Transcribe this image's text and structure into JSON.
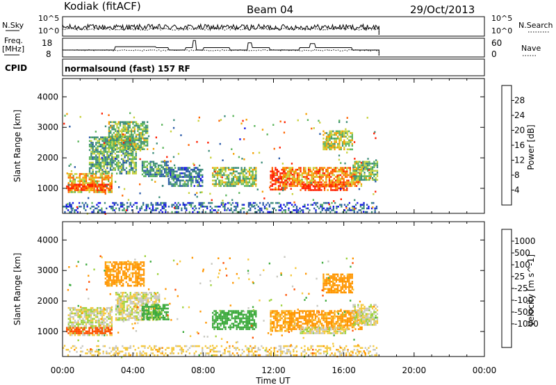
{
  "header": {
    "station": "Kodiak (fitACF)",
    "beam": "Beam 04",
    "date": "29/Oct/2013"
  },
  "status_panels": {
    "nsky_label": "N.Sky",
    "nsky_ticks": [
      "10^5",
      "10^0"
    ],
    "nsearch_label": "N.Search",
    "nsearch_ticks": [
      "10^5",
      "10^0"
    ],
    "freq_label": "Freq.",
    "freq_unit": "[MHz]",
    "freq_ticks": [
      "18",
      "8"
    ],
    "nave_label": "Nave",
    "nave_ticks": [
      "60",
      "0"
    ],
    "cpid_label": "CPID",
    "cpid_value": "normalsound (fast) 157 RF"
  },
  "colors": {
    "power_scale": [
      "#1414e6",
      "#2a5aa8",
      "#3c8c78",
      "#5ab45a",
      "#c8d23c",
      "#f5a000",
      "#ff6400",
      "#ff1e00"
    ],
    "velocity_scale": [
      "#e60000",
      "#ff5000",
      "#ff9600",
      "#f5c83c",
      "#c8c8c0",
      "#9ed23c",
      "#3caa3c",
      "#2d7850",
      "#1e46a0",
      "#1414b4"
    ]
  },
  "chart_data": [
    {
      "type": "heatmap",
      "title": "",
      "xlabel": "Time UT",
      "ylabel": "Slant Range [km]",
      "x_ticks": [
        "00:00",
        "04:00",
        "08:00",
        "12:00",
        "16:00",
        "20:00",
        "00:00"
      ],
      "x_range_hours": [
        0,
        24
      ],
      "y_ticks": [
        "1000",
        "2000",
        "3000",
        "4000"
      ],
      "ylim": [
        180,
        4600
      ],
      "colorbar_label": "Power [dB]",
      "colorbar_ticks": [
        "4",
        "8",
        "12",
        "16",
        "20",
        "24",
        "28"
      ],
      "colorbar_range": [
        0,
        30
      ],
      "data_end_hour": 18,
      "echo_regions": [
        {
          "t": [
            0.3,
            2.8
          ],
          "range": [
            850,
            1500
          ],
          "value": 20
        },
        {
          "t": [
            0.2,
            2.8
          ],
          "range": [
            950,
            1150
          ],
          "value": 28
        },
        {
          "t": [
            1.5,
            4.2
          ],
          "range": [
            1500,
            2700
          ],
          "value": 12
        },
        {
          "t": [
            2.6,
            4.8
          ],
          "range": [
            2300,
            3200
          ],
          "value": 14
        },
        {
          "t": [
            4.5,
            6.0
          ],
          "range": [
            1400,
            1900
          ],
          "value": 10
        },
        {
          "t": [
            6.0,
            8.0
          ],
          "range": [
            1100,
            1700
          ],
          "value": 8
        },
        {
          "t": [
            8.5,
            11.0
          ],
          "range": [
            1100,
            1700
          ],
          "value": 14
        },
        {
          "t": [
            11.8,
            12.8
          ],
          "range": [
            950,
            1700
          ],
          "value": 28
        },
        {
          "t": [
            12.5,
            17.0
          ],
          "range": [
            1050,
            1700
          ],
          "value": 22
        },
        {
          "t": [
            13.5,
            16.2
          ],
          "range": [
            950,
            1150
          ],
          "value": 28
        },
        {
          "t": [
            14.8,
            16.5
          ],
          "range": [
            2300,
            2900
          ],
          "value": 16
        },
        {
          "t": [
            16.5,
            17.9
          ],
          "range": [
            1300,
            1900
          ],
          "value": 14
        },
        {
          "t": [
            0.0,
            17.9
          ],
          "range": [
            200,
            550
          ],
          "value": 6
        }
      ]
    },
    {
      "type": "heatmap",
      "title": "",
      "xlabel": "Time UT",
      "ylabel": "Slant Range [km]",
      "x_ticks": [
        "00:00",
        "04:00",
        "08:00",
        "12:00",
        "16:00",
        "20:00",
        "00:00"
      ],
      "x_range_hours": [
        0,
        24
      ],
      "y_ticks": [
        "1000",
        "2000",
        "3000",
        "4000"
      ],
      "ylim": [
        180,
        4600
      ],
      "colorbar_label": "Velocity [m s^-1]",
      "colorbar_ticks": [
        "1000",
        "500",
        "100",
        "25",
        "-25",
        "-100",
        "-500",
        "-1000"
      ],
      "colorbar_levels": [
        -1000,
        -500,
        -100,
        -25,
        25,
        100,
        500,
        1000
      ],
      "data_end_hour": 18,
      "echo_regions": [
        {
          "t": [
            0.3,
            2.8
          ],
          "range": [
            900,
            1800
          ],
          "value": 0
        },
        {
          "t": [
            0.2,
            2.8
          ],
          "range": [
            950,
            1150
          ],
          "value": -600
        },
        {
          "t": [
            2.4,
            4.6
          ],
          "range": [
            2500,
            3300
          ],
          "value": -150
        },
        {
          "t": [
            3.0,
            5.5
          ],
          "range": [
            1400,
            2300
          ],
          "value": 0
        },
        {
          "t": [
            4.5,
            6.0
          ],
          "range": [
            1400,
            1900
          ],
          "value": 150
        },
        {
          "t": [
            8.5,
            11.0
          ],
          "range": [
            1100,
            1700
          ],
          "value": 200
        },
        {
          "t": [
            11.8,
            13.0
          ],
          "range": [
            1000,
            1700
          ],
          "value": -120
        },
        {
          "t": [
            12.8,
            17.0
          ],
          "range": [
            1100,
            1700
          ],
          "value": -150
        },
        {
          "t": [
            13.5,
            16.2
          ],
          "range": [
            950,
            1150
          ],
          "value": 0
        },
        {
          "t": [
            14.8,
            16.5
          ],
          "range": [
            2300,
            2900
          ],
          "value": -150
        },
        {
          "t": [
            16.5,
            17.9
          ],
          "range": [
            1200,
            1900
          ],
          "value": 0
        },
        {
          "t": [
            0.0,
            17.9
          ],
          "range": [
            200,
            550
          ],
          "value": -50
        }
      ]
    }
  ]
}
